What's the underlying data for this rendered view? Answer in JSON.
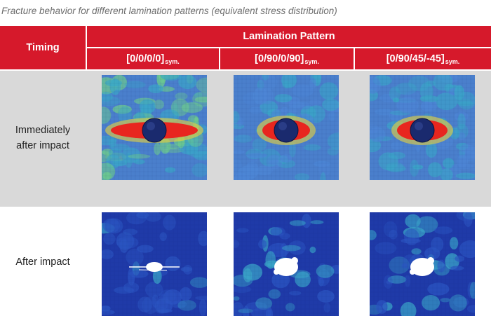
{
  "caption": "Fracture behavior for different lamination patterns (equivalent stress distribution)",
  "table": {
    "timing_header": "Timing",
    "lamination_header": "Lamination Pattern",
    "patterns": [
      {
        "main": "[0/0/0/0]",
        "sub": "sym."
      },
      {
        "main": "[0/90/0/90]",
        "sub": "sym."
      },
      {
        "main": "[0/90/45/-45]",
        "sub": "sym."
      }
    ],
    "rows": [
      {
        "label_line1": "Immediately",
        "label_line2": "after impact"
      },
      {
        "label_line1": "After impact",
        "label_line2": ""
      }
    ]
  },
  "colors": {
    "header_red": "#d6192b",
    "row1_bg": "#d9d9d9",
    "stress_low": "#1f3aa8",
    "stress_mid": "#3aa6c8",
    "stress_high": "#e8261f",
    "impactor": "#1a2a6e"
  }
}
